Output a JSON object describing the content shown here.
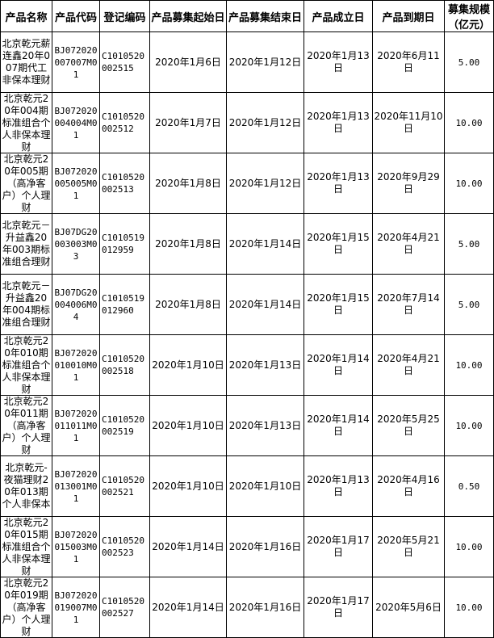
{
  "headers": [
    "产品名称",
    "产品代码",
    "登记编码",
    "产品募集起始日",
    "产品募集结束日",
    "产品成立日",
    "产品到期日",
    "募集规模（亿元）"
  ],
  "rows": [
    {
      "name": "北京乾元薪连鑫20年007期代工非保本理财",
      "code": "BJ072020007007M01",
      "reg": "C1010520002515",
      "start": "2020年1月6日",
      "end": "2020年1月12日",
      "setup": "2020年1月13日",
      "maturity": "2020年6月11日",
      "size": "5.00"
    },
    {
      "name": "北京乾元20年004期标准组合个人非保本理财",
      "code": "BJ072020004004M01",
      "reg": "C1010520002512",
      "start": "2020年1月7日",
      "end": "2020年1月12日",
      "setup": "2020年1月13日",
      "maturity": "2020年11月10日",
      "size": "10.00"
    },
    {
      "name": "北京乾元20年005期（高净客户）个人理财",
      "code": "BJ072020005005M01",
      "reg": "C1010520002513",
      "start": "2020年1月8日",
      "end": "2020年1月12日",
      "setup": "2020年1月13日",
      "maturity": "2020年9月29日",
      "size": "10.00"
    },
    {
      "name": "北京乾元－升益鑫20年003期标准组合理财",
      "code": "BJ07DG20003003M03",
      "reg": "C1010519012959",
      "start": "2020年1月8日",
      "end": "2020年1月14日",
      "setup": "2020年1月15日",
      "maturity": "2020年4月21日",
      "size": "5.00"
    },
    {
      "name": "北京乾元－升益鑫20年004期标准组合理财",
      "code": "BJ07DG20004006M04",
      "reg": "C1010519012960",
      "start": "2020年1月8日",
      "end": "2020年1月14日",
      "setup": "2020年1月15日",
      "maturity": "2020年7月14日",
      "size": "5.00"
    },
    {
      "name": "北京乾元20年010期标准组合个人非保本理财",
      "code": "BJ072020010010M01",
      "reg": "C1010520002518",
      "start": "2020年1月10日",
      "end": "2020年1月13日",
      "setup": "2020年1月14日",
      "maturity": "2020年4月21日",
      "size": "10.00"
    },
    {
      "name": "北京乾元20年011期（高净客户）个人理财",
      "code": "BJ072020011011M01",
      "reg": "C1010520002519",
      "start": "2020年1月10日",
      "end": "2020年1月13日",
      "setup": "2020年1月14日",
      "maturity": "2020年5月25日",
      "size": "10.00"
    },
    {
      "name": "北京乾元-夜猫理财20年013期个人非保本",
      "code": "BJ072020013001M01",
      "reg": "C1010520002521",
      "start": "2020年1月10日",
      "end": "2020年1月10日",
      "setup": "2020年1月13日",
      "maturity": "2020年4月16日",
      "size": "0.50"
    },
    {
      "name": "北京乾元20年015期标准组合个人非保本理财",
      "code": "BJ072020015003M01",
      "reg": "C1010520002523",
      "start": "2020年1月14日",
      "end": "2020年1月16日",
      "setup": "2020年1月17日",
      "maturity": "2020年5月21日",
      "size": "10.00"
    },
    {
      "name": "北京乾元20年019期（高净客户）个人理财",
      "code": "BJ072020019007M01",
      "reg": "C1010520002527",
      "start": "2020年1月14日",
      "end": "2020年1月16日",
      "setup": "2020年1月17日",
      "maturity": "2020年5月6日",
      "size": "10.00"
    }
  ]
}
